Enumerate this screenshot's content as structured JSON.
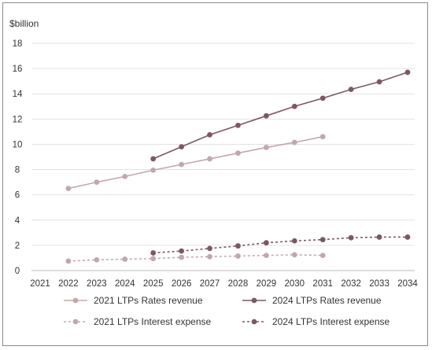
{
  "chart_data": {
    "type": "line",
    "ylabel": "$billion",
    "ylim": [
      0,
      18
    ],
    "yticks": [
      0,
      2,
      4,
      6,
      8,
      10,
      12,
      14,
      16,
      18
    ],
    "x": [
      2021,
      2022,
      2023,
      2024,
      2025,
      2026,
      2027,
      2028,
      2029,
      2030,
      2031,
      2032,
      2033,
      2034
    ],
    "grid": "horizontal",
    "legend_position": "bottom",
    "series": [
      {
        "name": "2021 LTPs Rates revenue",
        "color": "#c2a8ab",
        "dash": "solid",
        "x": [
          2022,
          2023,
          2024,
          2025,
          2026,
          2027,
          2028,
          2029,
          2030,
          2031
        ],
        "values": [
          6.5,
          7.0,
          7.45,
          7.95,
          8.4,
          8.85,
          9.3,
          9.75,
          10.15,
          10.6
        ]
      },
      {
        "name": "2024 LTPs Rates revenue",
        "color": "#7d5860",
        "dash": "solid",
        "x": [
          2025,
          2026,
          2027,
          2028,
          2029,
          2030,
          2031,
          2032,
          2033,
          2034
        ],
        "values": [
          8.85,
          9.8,
          10.75,
          11.5,
          12.25,
          13.0,
          13.65,
          14.35,
          14.95,
          15.7
        ]
      },
      {
        "name": "2021 LTPs Interest expense",
        "color": "#c2a8ab",
        "dash": "dotted",
        "x": [
          2022,
          2023,
          2024,
          2025,
          2026,
          2027,
          2028,
          2029,
          2030,
          2031
        ],
        "values": [
          0.75,
          0.85,
          0.9,
          0.95,
          1.05,
          1.1,
          1.15,
          1.2,
          1.25,
          1.2
        ]
      },
      {
        "name": "2024 LTPs Interest expense",
        "color": "#7d5860",
        "dash": "dotted",
        "x": [
          2025,
          2026,
          2027,
          2028,
          2029,
          2030,
          2031,
          2032,
          2033,
          2034
        ],
        "values": [
          1.4,
          1.55,
          1.75,
          1.95,
          2.2,
          2.35,
          2.45,
          2.6,
          2.65,
          2.65
        ]
      }
    ]
  }
}
